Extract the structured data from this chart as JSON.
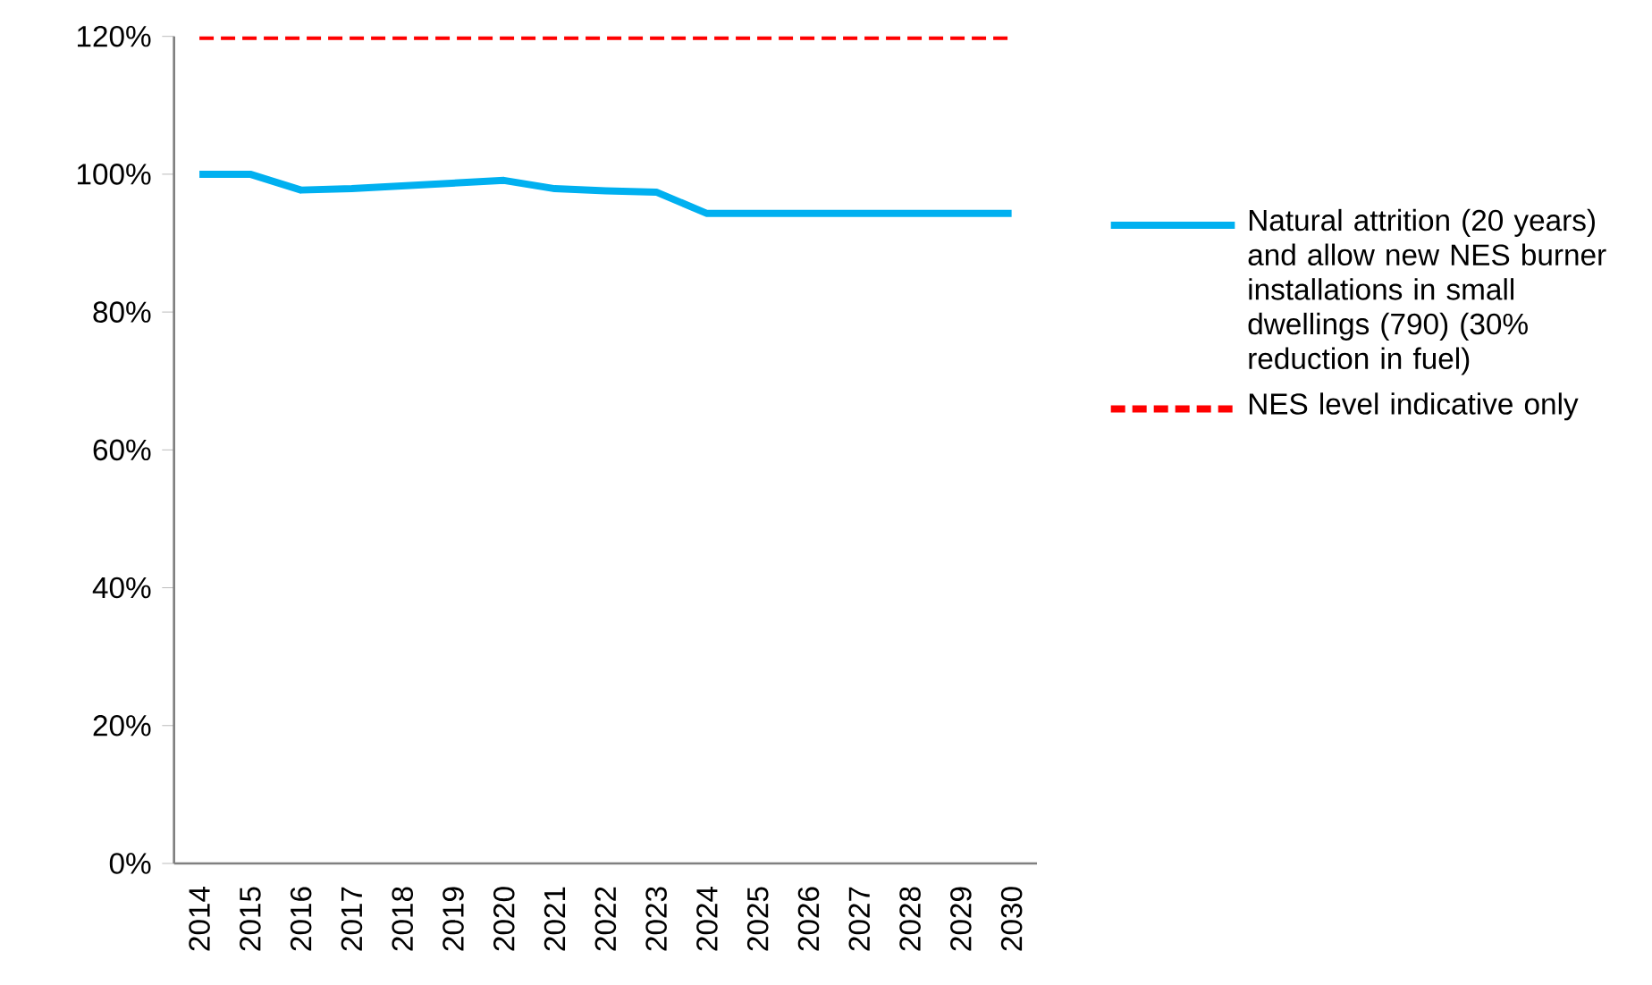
{
  "chart_data": {
    "type": "line",
    "categories": [
      "2014",
      "2015",
      "2016",
      "2017",
      "2018",
      "2019",
      "2020",
      "2021",
      "2022",
      "2023",
      "2024",
      "2025",
      "2026",
      "2027",
      "2028",
      "2029",
      "2030"
    ],
    "series": [
      {
        "name": "Natural attrition (20 years) and allow new NES burner installations in small dwellings (790) (30% reduction in fuel)",
        "color": "#00b0f0",
        "line_style": "solid",
        "values": [
          100,
          100,
          97.7,
          97.9,
          98.3,
          98.7,
          99.1,
          97.9,
          97.6,
          97.4,
          94.3,
          94.3,
          94.3,
          94.3,
          94.3,
          94.3,
          94.3
        ]
      },
      {
        "name": "NES level indicative only",
        "color": "#ff0000",
        "line_style": "dashed",
        "values": [
          120,
          120,
          120,
          120,
          120,
          120,
          120,
          120,
          120,
          120,
          120,
          120,
          120,
          120,
          120,
          120,
          120
        ]
      }
    ],
    "ylim": [
      0,
      120
    ],
    "yticks": [
      {
        "value": 0,
        "label": "0%"
      },
      {
        "value": 20,
        "label": "20%"
      },
      {
        "value": 40,
        "label": "40%"
      },
      {
        "value": 60,
        "label": "60%"
      },
      {
        "value": 80,
        "label": "80%"
      },
      {
        "value": 100,
        "label": "100%"
      },
      {
        "value": 120,
        "label": "120%"
      }
    ],
    "grid": false,
    "legend": "right",
    "marker": "none"
  }
}
